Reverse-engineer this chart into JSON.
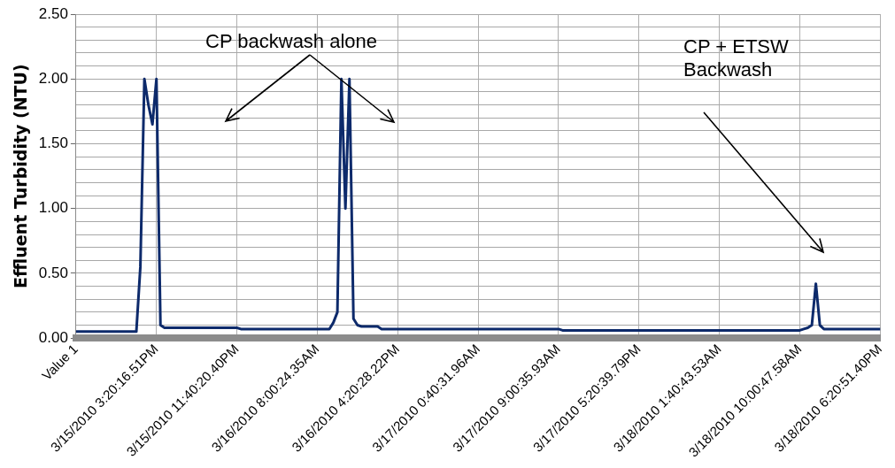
{
  "chart_data": {
    "type": "line",
    "ylabel": "Effluent Turbidity (NTU)",
    "categories": [
      "Value 1",
      null,
      null,
      null,
      null,
      null,
      null,
      null,
      null,
      null,
      null,
      null,
      null,
      null,
      null,
      null,
      null,
      null,
      null,
      null,
      "3/15/2010 3:20:16.51PM",
      null,
      null,
      null,
      null,
      null,
      null,
      null,
      null,
      null,
      null,
      null,
      null,
      null,
      null,
      null,
      null,
      null,
      null,
      null,
      "3/15/2010 11:40:20.40PM",
      null,
      null,
      null,
      null,
      null,
      null,
      null,
      null,
      null,
      null,
      null,
      null,
      null,
      null,
      null,
      null,
      null,
      null,
      null,
      "3/16/2010 8:00:24.35AM",
      null,
      null,
      null,
      null,
      null,
      null,
      null,
      null,
      null,
      null,
      null,
      null,
      null,
      null,
      null,
      null,
      null,
      null,
      null,
      "3/16/2010 4:20:28.22PM",
      null,
      null,
      null,
      null,
      null,
      null,
      null,
      null,
      null,
      null,
      null,
      null,
      null,
      null,
      null,
      null,
      null,
      null,
      null,
      "3/17/2010 0:40:31.96AM",
      null,
      null,
      null,
      null,
      null,
      null,
      null,
      null,
      null,
      null,
      null,
      null,
      null,
      null,
      null,
      null,
      null,
      null,
      null,
      "3/17/2010 9:00:35.93AM",
      null,
      null,
      null,
      null,
      null,
      null,
      null,
      null,
      null,
      null,
      null,
      null,
      null,
      null,
      null,
      null,
      null,
      null,
      null,
      "3/17/2010 5:20:39.79PM",
      null,
      null,
      null,
      null,
      null,
      null,
      null,
      null,
      null,
      null,
      null,
      null,
      null,
      null,
      null,
      null,
      null,
      null,
      null,
      "3/18/2010 1:40:43.53AM",
      null,
      null,
      null,
      null,
      null,
      null,
      null,
      null,
      null,
      null,
      null,
      null,
      null,
      null,
      null,
      null,
      null,
      null,
      null,
      "3/18/2010 10:00:47.58AM",
      null,
      null,
      null,
      null,
      null,
      null,
      null,
      null,
      null,
      null,
      null,
      null,
      null,
      null,
      null,
      null,
      null,
      null,
      null,
      "3/18/2010 6:20:51.40PM"
    ],
    "series": [
      {
        "color": "#0d2a6b",
        "values": [
          0.05,
          0.05,
          0.05,
          0.05,
          0.05,
          0.05,
          0.05,
          0.05,
          0.05,
          0.05,
          0.05,
          0.05,
          0.05,
          0.05,
          0.05,
          0.05,
          0.55,
          2.0,
          1.8,
          1.65,
          2.0,
          0.1,
          0.08,
          0.08,
          0.08,
          0.08,
          0.08,
          0.08,
          0.08,
          0.08,
          0.08,
          0.08,
          0.08,
          0.08,
          0.08,
          0.08,
          0.08,
          0.08,
          0.08,
          0.08,
          0.08,
          0.07,
          0.07,
          0.07,
          0.07,
          0.07,
          0.07,
          0.07,
          0.07,
          0.07,
          0.07,
          0.07,
          0.07,
          0.07,
          0.07,
          0.07,
          0.07,
          0.07,
          0.07,
          0.07,
          0.07,
          0.07,
          0.07,
          0.07,
          0.12,
          0.2,
          2.0,
          1.0,
          2.0,
          0.15,
          0.1,
          0.09,
          0.09,
          0.09,
          0.09,
          0.09,
          0.07,
          0.07,
          0.07,
          0.07,
          0.07,
          0.07,
          0.07,
          0.07,
          0.07,
          0.07,
          0.07,
          0.07,
          0.07,
          0.07,
          0.07,
          0.07,
          0.07,
          0.07,
          0.07,
          0.07,
          0.07,
          0.07,
          0.07,
          0.07,
          0.07,
          0.07,
          0.07,
          0.07,
          0.07,
          0.07,
          0.07,
          0.07,
          0.07,
          0.07,
          0.07,
          0.07,
          0.07,
          0.07,
          0.07,
          0.07,
          0.07,
          0.07,
          0.07,
          0.07,
          0.07,
          0.06,
          0.06,
          0.06,
          0.06,
          0.06,
          0.06,
          0.06,
          0.06,
          0.06,
          0.06,
          0.06,
          0.06,
          0.06,
          0.06,
          0.06,
          0.06,
          0.06,
          0.06,
          0.06,
          0.06,
          0.06,
          0.06,
          0.06,
          0.06,
          0.06,
          0.06,
          0.06,
          0.06,
          0.06,
          0.06,
          0.06,
          0.06,
          0.06,
          0.06,
          0.06,
          0.06,
          0.06,
          0.06,
          0.06,
          0.06,
          0.06,
          0.06,
          0.06,
          0.06,
          0.06,
          0.06,
          0.06,
          0.06,
          0.06,
          0.06,
          0.06,
          0.06,
          0.06,
          0.06,
          0.06,
          0.06,
          0.06,
          0.06,
          0.06,
          0.06,
          0.07,
          0.08,
          0.1,
          0.42,
          0.1,
          0.07,
          0.07,
          0.07,
          0.07,
          0.07,
          0.07,
          0.07,
          0.07,
          0.07,
          0.07,
          0.07,
          0.07,
          0.07,
          0.07,
          0.07
        ]
      }
    ],
    "ylim": [
      0,
      2.5
    ],
    "yticks": [
      {
        "value": 0,
        "label": "0.00"
      },
      {
        "value": 0.1,
        "label": null
      },
      {
        "value": 0.2,
        "label": null
      },
      {
        "value": 0.3,
        "label": null
      },
      {
        "value": 0.4,
        "label": null
      },
      {
        "value": 0.5,
        "label": "0.50"
      },
      {
        "value": 0.6,
        "label": null
      },
      {
        "value": 0.7,
        "label": null
      },
      {
        "value": 0.8,
        "label": null
      },
      {
        "value": 0.9,
        "label": null
      },
      {
        "value": 1.0,
        "label": "1.00"
      },
      {
        "value": 1.1,
        "label": null
      },
      {
        "value": 1.2,
        "label": null
      },
      {
        "value": 1.3,
        "label": null
      },
      {
        "value": 1.4,
        "label": null
      },
      {
        "value": 1.5,
        "label": "1.50"
      },
      {
        "value": 1.6,
        "label": null
      },
      {
        "value": 1.7,
        "label": null
      },
      {
        "value": 1.8,
        "label": null
      },
      {
        "value": 1.9,
        "label": null
      },
      {
        "value": 2.0,
        "label": "2.00"
      },
      {
        "value": 2.1,
        "label": null
      },
      {
        "value": 2.2,
        "label": null
      },
      {
        "value": 2.3,
        "label": null
      },
      {
        "value": 2.4,
        "label": null
      },
      {
        "value": 2.5,
        "label": "2.50"
      }
    ],
    "annotations": [
      "CP backwash alone",
      "CP + ETSW Backwash"
    ],
    "grid": true,
    "marker": "none",
    "line_style": "solid",
    "legend": false
  }
}
